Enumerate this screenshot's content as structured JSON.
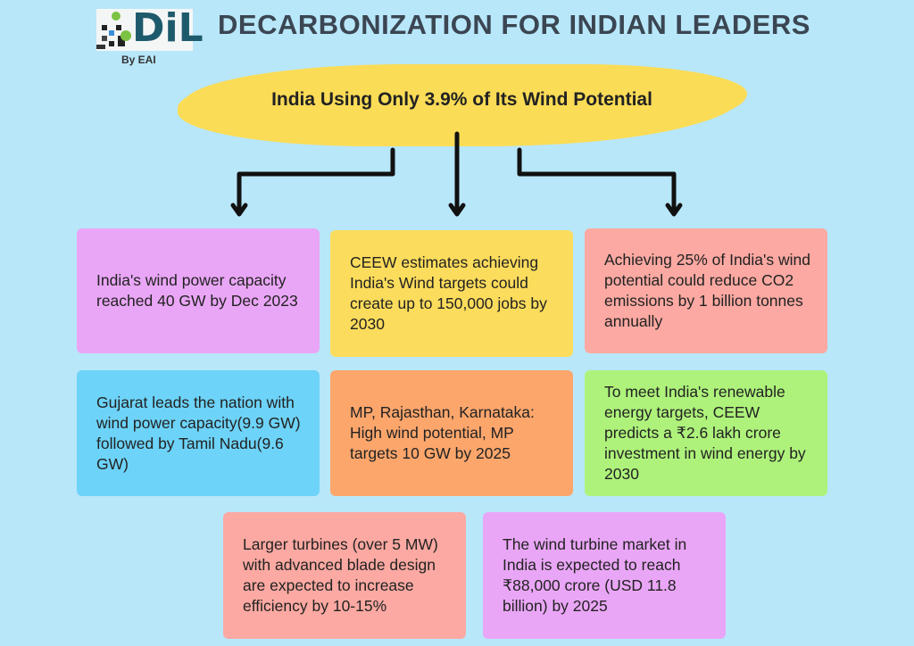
{
  "header": {
    "title": "DECARBONIZATION FOR INDIAN LEADERS",
    "logo_text": "DiL",
    "logo_sub": "By EAI"
  },
  "banner": {
    "text": "India Using Only 3.9% of Its Wind Potential"
  },
  "facts": [
    {
      "text": "India's wind power capacity reached 40 GW by Dec 2023",
      "color": "#eaa6f6"
    },
    {
      "text": "CEEW estimates achieving India's Wind targets could create up to 150,000 jobs by 2030",
      "color": "#fcdc5c"
    },
    {
      "text": "Achieving 25% of India's wind potential could reduce CO2 emissions by 1 billion tonnes annually",
      "color": "#fba9a2"
    },
    {
      "text": "Gujarat leads the nation with wind power capacity(9.9 GW) followed by Tamil Nadu(9.6 GW)",
      "color": "#6dd3f8"
    },
    {
      "text": "MP, Rajasthan, Karnataka: High wind potential, MP targets 10 GW by 2025",
      "color": "#fca66c"
    },
    {
      "text": "To meet India's renewable energy targets, CEEW predicts a ₹2.6 lakh crore investment in wind energy by 2030",
      "color": "#aef27b"
    },
    {
      "text": "Larger turbines (over 5 MW) with advanced blade design are expected to increase efficiency by 10-15%",
      "color": "#fba9a2"
    },
    {
      "text": "The wind turbine market in India is expected to reach ₹88,000 crore (USD 11.8 billion) by 2025",
      "color": "#eaa6f6"
    }
  ]
}
